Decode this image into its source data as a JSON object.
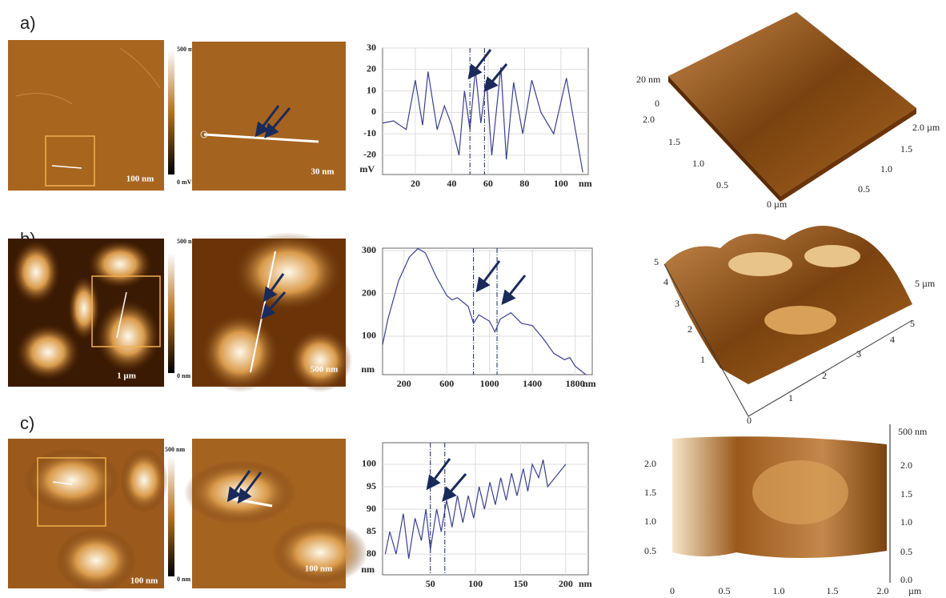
{
  "panels": [
    {
      "label": "a)",
      "colorbar_max": "500 mV",
      "colorbar_min": "0 mV",
      "scale_1": "100 nm",
      "scale_2": "30 nm",
      "surface_labels": [
        "20 nm",
        "0",
        "2.0",
        "1.5",
        "1.0",
        "0.5",
        "0 µm",
        "2.0 µm",
        "1.5",
        "1.0",
        "0.5"
      ]
    },
    {
      "label": "b)",
      "colorbar_max": "500 nm",
      "colorbar_min": "0 nm",
      "scale_1": "1 µm",
      "scale_2": "500 nm",
      "surface_labels": [
        "5",
        "4",
        "3",
        "2",
        "1",
        "0",
        "1",
        "2",
        "3",
        "4",
        "5",
        "5 µm"
      ]
    },
    {
      "label": "c)",
      "colorbar_max": "500 nm",
      "colorbar_min": "0 nm",
      "scale_1": "100 nm",
      "scale_2": "100 nm",
      "surface_labels": [
        "500 nm",
        "2.0",
        "1.5",
        "1.0",
        "0.5",
        "0.0",
        "2.0",
        "1.5",
        "1.0",
        "0.5",
        "0",
        "0.5",
        "1.0",
        "1.5",
        "2.0",
        "µm"
      ]
    }
  ],
  "chart_data": [
    {
      "type": "line",
      "color": "#3a3f8f",
      "x_unit": "nm",
      "y_unit": "mV",
      "grid": true,
      "x": [
        2,
        8,
        15,
        20,
        24,
        27,
        32,
        36,
        40,
        44,
        47,
        50,
        53,
        56,
        59,
        62,
        67,
        70,
        74,
        79,
        84,
        89,
        96,
        103,
        112
      ],
      "values": [
        -5,
        -4,
        -8,
        15,
        -6,
        19,
        -8,
        3,
        -6,
        -20,
        10,
        -8,
        20,
        -5,
        15,
        -20,
        21,
        -22,
        14,
        -10,
        15,
        0,
        -10,
        16,
        -28
      ],
      "cursors": [
        50,
        58
      ],
      "xlim": [
        2,
        115
      ],
      "xticks": [
        20,
        40,
        60,
        80,
        100
      ],
      "ylim": [
        -29,
        30
      ],
      "yticks": [
        30,
        20,
        10,
        0,
        -10,
        -20
      ]
    },
    {
      "type": "line",
      "color": "#3a3f8f",
      "x_unit": "nm",
      "y_unit": "nm",
      "grid": true,
      "x": [
        0,
        50,
        150,
        250,
        330,
        400,
        500,
        600,
        650,
        700,
        750,
        800,
        850,
        900,
        1000,
        1050,
        1100,
        1200,
        1300,
        1400,
        1500,
        1600,
        1700,
        1750,
        1800,
        1900
      ],
      "values": [
        80,
        140,
        230,
        285,
        305,
        295,
        240,
        195,
        185,
        190,
        180,
        170,
        130,
        150,
        135,
        110,
        140,
        155,
        130,
        125,
        95,
        60,
        45,
        50,
        30,
        10
      ],
      "cursors": [
        850,
        1070
      ],
      "xlim": [
        0,
        1960
      ],
      "xticks": [
        200,
        600,
        1000,
        1400,
        1800
      ],
      "ylim": [
        10,
        306
      ],
      "yticks": [
        300,
        200,
        100
      ]
    },
    {
      "type": "line",
      "color": "#3a3f8f",
      "x_unit": "nm",
      "y_unit": "nm",
      "grid": true,
      "x": [
        0,
        5,
        12,
        20,
        26,
        33,
        40,
        45,
        50,
        57,
        62,
        68,
        74,
        80,
        86,
        92,
        98,
        104,
        110,
        116,
        122,
        128,
        134,
        140,
        146,
        153,
        158,
        163,
        170,
        175,
        180,
        200
      ],
      "values": [
        80,
        85,
        80,
        89,
        79,
        88,
        83,
        90,
        81,
        90,
        85,
        92,
        86,
        93,
        87,
        93,
        88,
        95,
        90,
        96,
        91,
        97,
        92,
        98,
        93,
        99,
        94,
        100,
        97,
        101,
        95,
        100
      ],
      "cursors": [
        50,
        66
      ],
      "xlim": [
        -3,
        225
      ],
      "xticks": [
        50,
        100,
        150,
        200
      ],
      "ylim": [
        75.4,
        104.8
      ],
      "yticks": [
        100,
        95,
        90,
        85,
        80
      ]
    }
  ]
}
